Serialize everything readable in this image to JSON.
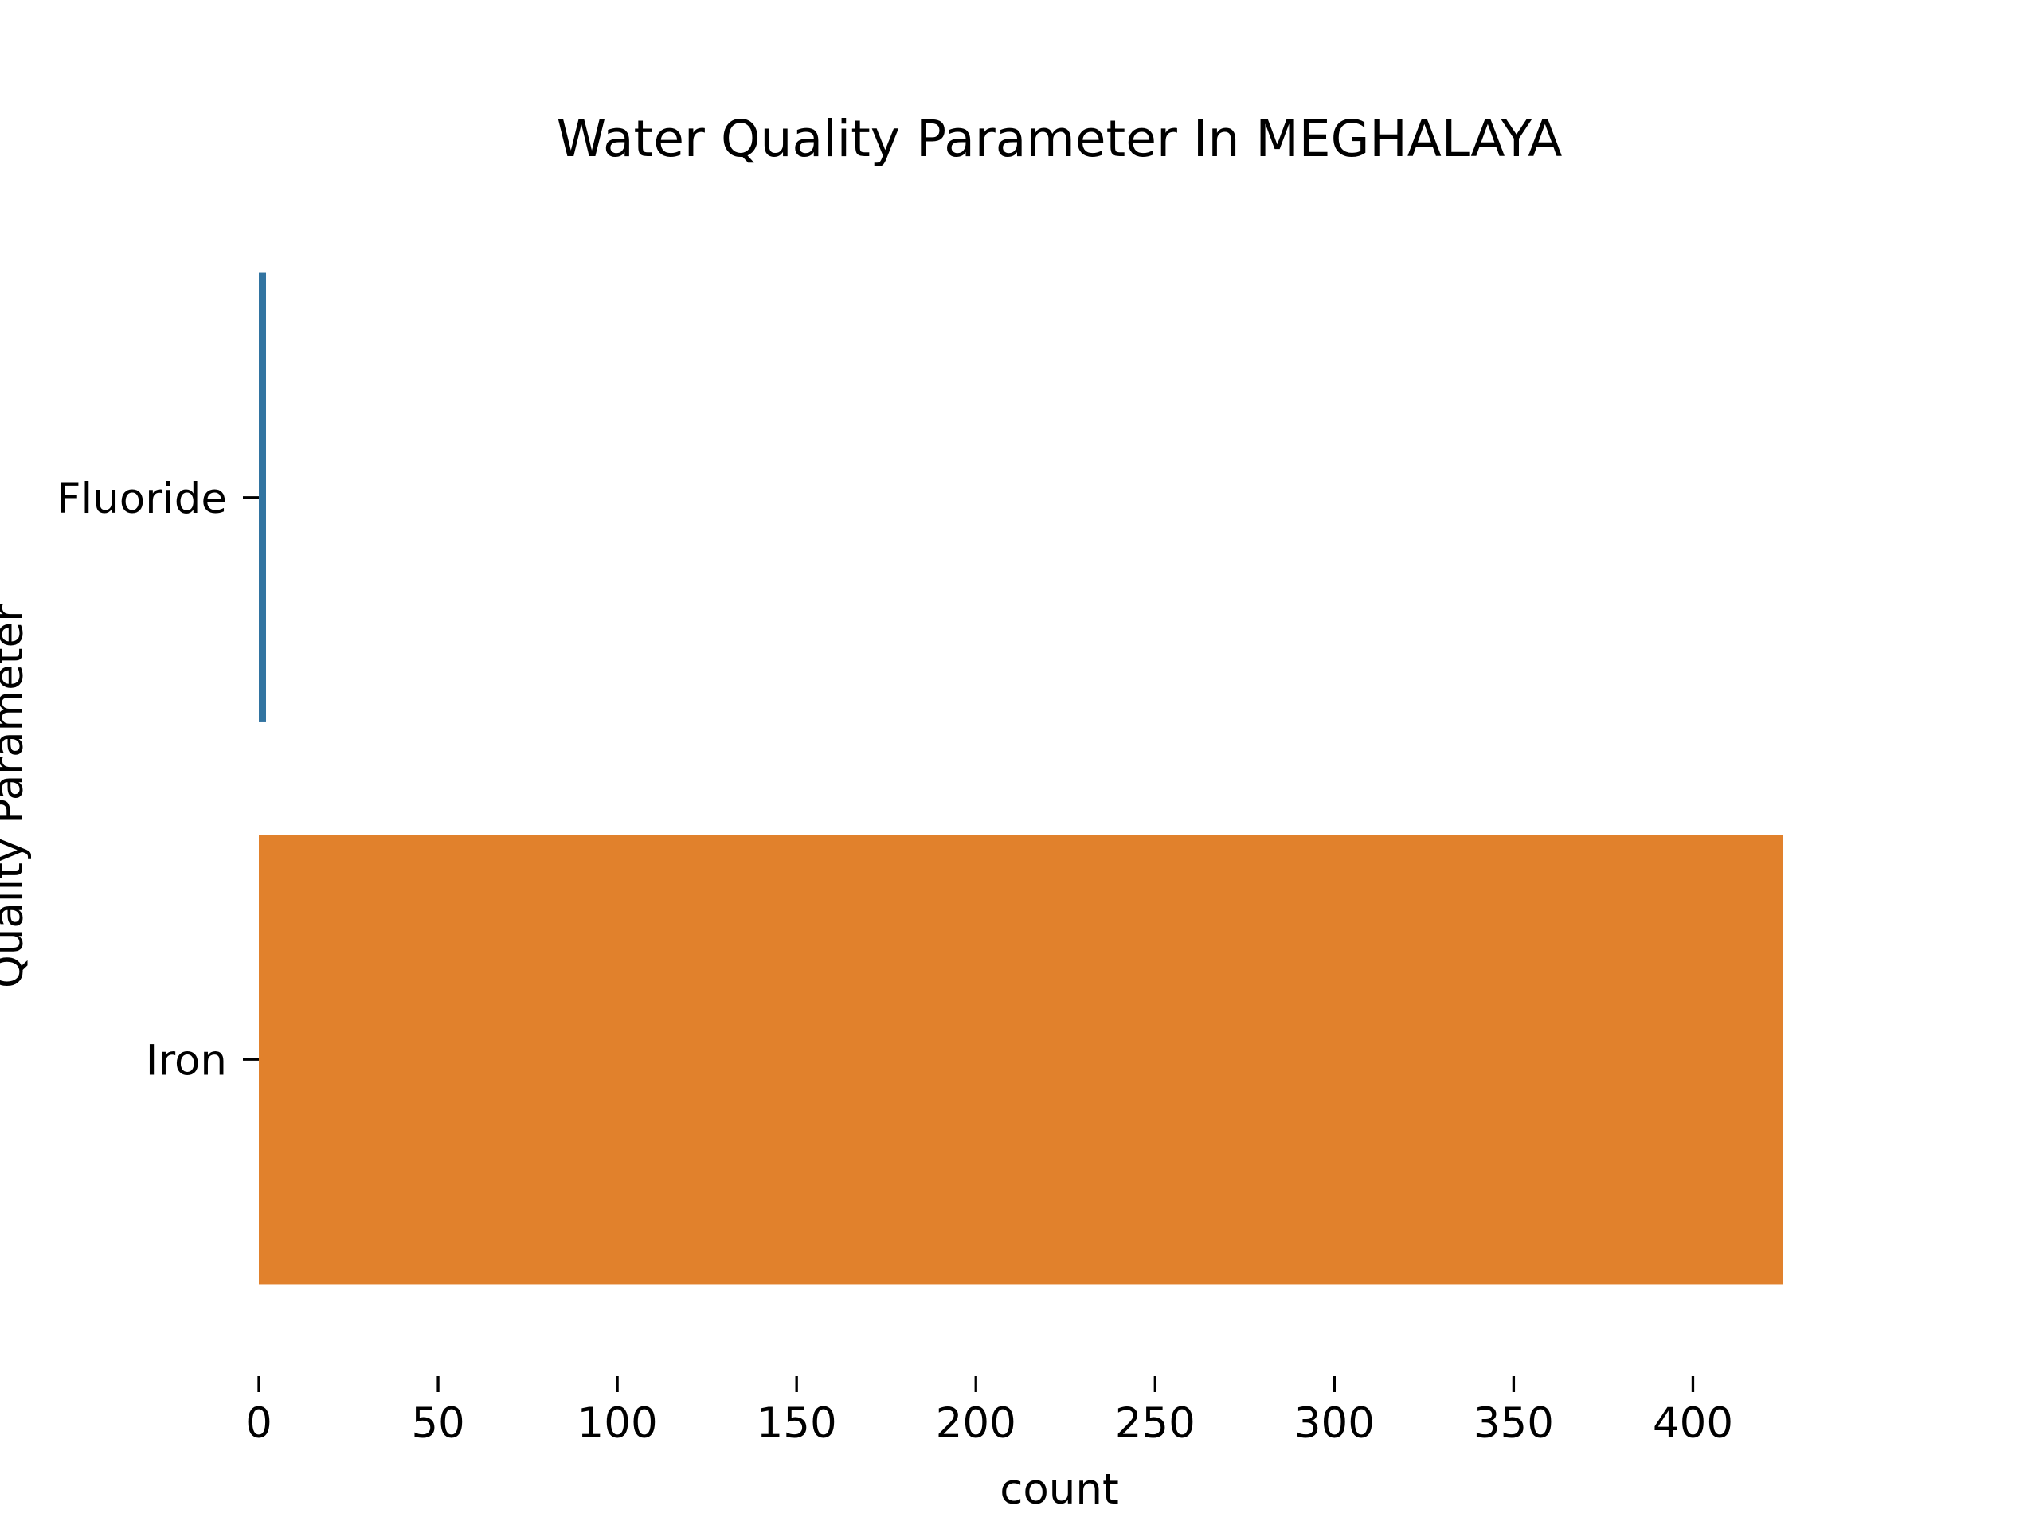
{
  "chart_data": {
    "type": "bar",
    "orientation": "horizontal",
    "title": "Water Quality Parameter In MEGHALAYA",
    "xlabel": "count",
    "ylabel": "Quality Parameter",
    "categories": [
      "Fluoride",
      "Iron"
    ],
    "values": [
      2,
      425
    ],
    "colors": [
      "#3274a1",
      "#e1812c"
    ],
    "xlim": [
      0,
      425
    ],
    "xticks": [
      0,
      50,
      100,
      150,
      200,
      250,
      300,
      350,
      400
    ],
    "xtick_labels": [
      "0",
      "50",
      "100",
      "150",
      "200",
      "250",
      "300",
      "350",
      "400"
    ],
    "grid": false,
    "legend": "none"
  }
}
